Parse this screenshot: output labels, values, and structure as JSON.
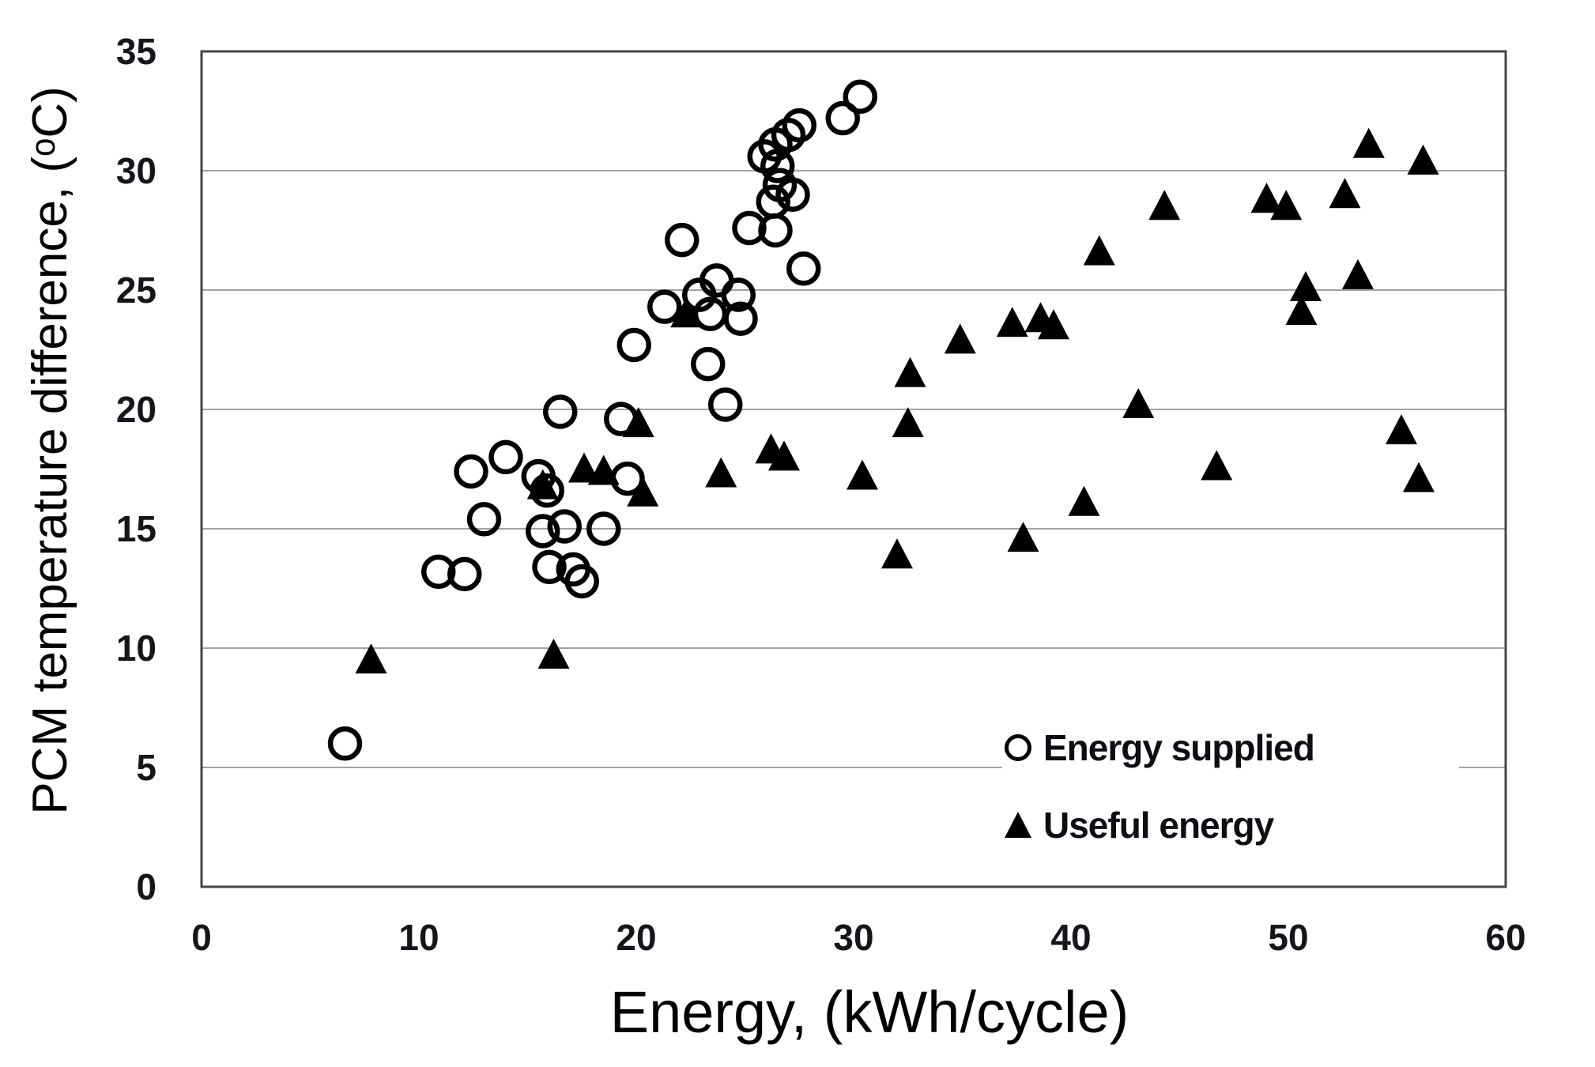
{
  "figure": {
    "background": "#ffffff",
    "marker_color": "#000000",
    "grid_color": "#a3a3a3",
    "border_color": "#454545",
    "tick_color": "#15151c"
  },
  "chart_data": {
    "type": "scatter",
    "title": "",
    "xlabel": "Energy, (kWh/cycle)",
    "ylabel": "PCM temperature difference, (ᵒC)",
    "xlim": [
      0,
      60
    ],
    "ylim": [
      0,
      35
    ],
    "xticks": [
      0,
      10,
      20,
      30,
      40,
      50,
      60
    ],
    "yticks": [
      35,
      30,
      25,
      20,
      15,
      10,
      5,
      0
    ],
    "gridlines_y": [
      5,
      10,
      15,
      20,
      25,
      30
    ],
    "grid": "horizontal-only",
    "legend_position": "lower-right",
    "series": [
      {
        "name": "Energy supplied",
        "marker": "open-circle",
        "points": [
          [
            6.6,
            6.0
          ],
          [
            10.9,
            13.2
          ],
          [
            12.1,
            13.1
          ],
          [
            12.4,
            17.4
          ],
          [
            13.0,
            15.4
          ],
          [
            14.0,
            18.0
          ],
          [
            15.5,
            17.2
          ],
          [
            15.7,
            14.9
          ],
          [
            15.9,
            16.6
          ],
          [
            16.7,
            15.1
          ],
          [
            16.0,
            13.4
          ],
          [
            17.1,
            13.3
          ],
          [
            17.5,
            12.8
          ],
          [
            16.5,
            19.9
          ],
          [
            18.5,
            15.0
          ],
          [
            19.3,
            19.6
          ],
          [
            19.6,
            17.1
          ],
          [
            19.9,
            22.7
          ],
          [
            21.3,
            24.3
          ],
          [
            22.9,
            24.8
          ],
          [
            23.7,
            25.4
          ],
          [
            24.7,
            24.8
          ],
          [
            23.4,
            24.0
          ],
          [
            24.8,
            23.8
          ],
          [
            23.3,
            21.9
          ],
          [
            24.1,
            20.2
          ],
          [
            22.1,
            27.1
          ],
          [
            25.2,
            27.6
          ],
          [
            26.4,
            27.5
          ],
          [
            27.7,
            25.9
          ],
          [
            26.3,
            28.7
          ],
          [
            26.6,
            29.4
          ],
          [
            27.2,
            29.0
          ],
          [
            25.9,
            30.6
          ],
          [
            26.5,
            30.2
          ],
          [
            26.4,
            31.1
          ],
          [
            27.0,
            31.5
          ],
          [
            27.5,
            31.9
          ],
          [
            29.5,
            32.2
          ],
          [
            30.3,
            33.1
          ]
        ]
      },
      {
        "name": "Useful energy",
        "marker": "filled-triangle",
        "points": [
          [
            7.8,
            9.5
          ],
          [
            16.2,
            9.7
          ],
          [
            15.7,
            16.8
          ],
          [
            17.6,
            17.5
          ],
          [
            18.5,
            17.4
          ],
          [
            20.1,
            19.4
          ],
          [
            20.3,
            16.5
          ],
          [
            22.3,
            24.0
          ],
          [
            23.9,
            17.3
          ],
          [
            26.2,
            18.3
          ],
          [
            26.8,
            18.0
          ],
          [
            30.4,
            17.2
          ],
          [
            32.0,
            13.9
          ],
          [
            32.5,
            19.4
          ],
          [
            32.6,
            21.5
          ],
          [
            34.9,
            22.9
          ],
          [
            37.3,
            23.6
          ],
          [
            38.6,
            23.8
          ],
          [
            39.2,
            23.5
          ],
          [
            37.8,
            14.6
          ],
          [
            40.6,
            16.1
          ],
          [
            41.3,
            26.6
          ],
          [
            43.1,
            20.2
          ],
          [
            44.3,
            28.5
          ],
          [
            46.7,
            17.6
          ],
          [
            49.0,
            28.8
          ],
          [
            49.9,
            28.5
          ],
          [
            50.8,
            25.1
          ],
          [
            50.6,
            24.1
          ],
          [
            52.6,
            29.0
          ],
          [
            53.2,
            25.6
          ],
          [
            53.7,
            31.1
          ],
          [
            55.2,
            19.1
          ],
          [
            56.0,
            17.1
          ],
          [
            56.2,
            30.4
          ]
        ]
      }
    ],
    "legend": {
      "entries": [
        {
          "icon": "open-circle-icon",
          "label": "Energy supplied"
        },
        {
          "icon": "filled-triangle-icon",
          "label": "Useful energy"
        }
      ]
    }
  }
}
